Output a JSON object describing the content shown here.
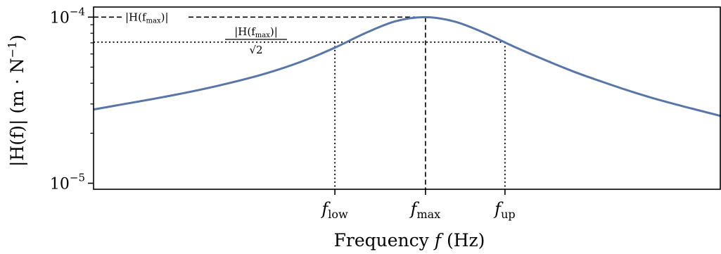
{
  "chart_data": {
    "type": "line",
    "xlabel": "Frequency",
    "xlabel_symbol": "f",
    "xlabel_unit": "(Hz)",
    "ylabel_main": "|H(f)|",
    "ylabel_unit_open": "(m · N",
    "ylabel_unit_exp": "−1",
    "ylabel_unit_close": ")",
    "yscale": "log",
    "ylim": [
      9.2e-06,
      0.000115
    ],
    "y_ticks": [
      {
        "value": 0.0001,
        "base": "10",
        "exp": "−4"
      },
      {
        "value": 1e-05,
        "base": "10",
        "exp": "−5"
      }
    ],
    "y_minor_ticks": [
      2e-05,
      3e-05,
      4e-05,
      5e-05,
      6e-05,
      7e-05,
      8e-05,
      9e-05
    ],
    "x_ticks": [
      {
        "value": 0.3467,
        "base": "f",
        "sub": "low"
      },
      {
        "value": 0.5,
        "base": "f",
        "sub": "max"
      },
      {
        "value": 0.6345,
        "base": "f",
        "sub": "up"
      }
    ],
    "xlim": [
      -0.0616,
      1.0
    ],
    "grid": false,
    "series": [
      {
        "color": "#5876a8",
        "x": [
          -0.0616,
          0.0,
          0.05,
          0.1,
          0.15,
          0.2,
          0.25,
          0.3,
          0.35,
          0.4,
          0.45,
          0.5,
          0.55,
          0.6,
          0.65,
          0.7,
          0.75,
          0.8,
          0.85,
          0.9,
          0.95,
          1.0
        ],
        "y": [
          2.78e-05,
          3.04e-05,
          3.27e-05,
          3.54e-05,
          3.87e-05,
          4.28e-05,
          4.82e-05,
          5.57e-05,
          6.63e-05,
          8.07e-05,
          9.46e-05,
          0.0001,
          9.39e-05,
          8.03e-05,
          6.64e-05,
          5.56e-05,
          4.71e-05,
          4.07e-05,
          3.55e-05,
          3.14e-05,
          2.82e-05,
          2.54e-05
        ]
      }
    ],
    "reference_lines": [
      {
        "y": 0.0001,
        "style": "dashed",
        "label_text": "|H(f",
        "label_sub": "max",
        "label_end": ")|"
      },
      {
        "y": 7.071e-05,
        "style": "dotted",
        "label_num": "|H(f",
        "label_sub": "max",
        "label_end": ")|",
        "label_den": "√2"
      }
    ]
  }
}
